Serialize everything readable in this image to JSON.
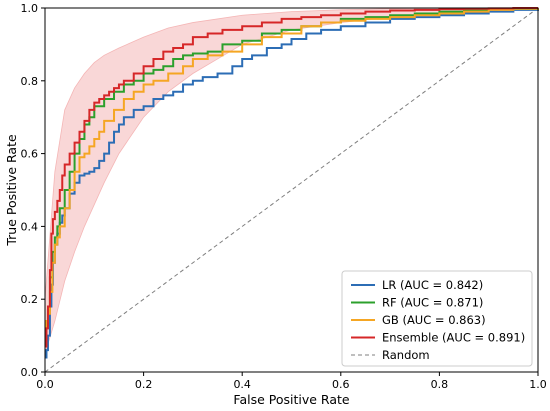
{
  "chart_data": {
    "type": "line",
    "title": "",
    "xlabel": "False Positive Rate",
    "ylabel": "True Positive Rate",
    "xlim": [
      0.0,
      1.0
    ],
    "ylim": [
      0.0,
      1.0
    ],
    "xticks": [
      "0.0",
      "0.2",
      "0.4",
      "0.6",
      "0.8",
      "1.0"
    ],
    "yticks": [
      "0.0",
      "0.2",
      "0.4",
      "0.6",
      "0.8",
      "1.0"
    ],
    "grid": false,
    "legend_position": "lower-right",
    "series": [
      {
        "name": "LR (AUC = 0.842)",
        "color": "#2c6db5",
        "style": "step",
        "x": [
          0.0,
          0.003,
          0.006,
          0.01,
          0.013,
          0.016,
          0.02,
          0.025,
          0.03,
          0.035,
          0.04,
          0.05,
          0.06,
          0.07,
          0.08,
          0.09,
          0.1,
          0.11,
          0.12,
          0.13,
          0.14,
          0.15,
          0.16,
          0.18,
          0.2,
          0.22,
          0.24,
          0.26,
          0.28,
          0.3,
          0.32,
          0.35,
          0.38,
          0.4,
          0.42,
          0.45,
          0.48,
          0.5,
          0.53,
          0.56,
          0.6,
          0.65,
          0.7,
          0.75,
          0.8,
          0.85,
          0.9,
          0.95,
          1.0
        ],
        "y": [
          0.04,
          0.06,
          0.1,
          0.18,
          0.24,
          0.3,
          0.35,
          0.38,
          0.41,
          0.43,
          0.45,
          0.49,
          0.52,
          0.54,
          0.545,
          0.55,
          0.56,
          0.58,
          0.6,
          0.63,
          0.66,
          0.68,
          0.7,
          0.72,
          0.73,
          0.75,
          0.76,
          0.77,
          0.79,
          0.8,
          0.81,
          0.82,
          0.84,
          0.86,
          0.87,
          0.89,
          0.9,
          0.915,
          0.93,
          0.94,
          0.95,
          0.96,
          0.97,
          0.975,
          0.98,
          0.985,
          0.99,
          0.995,
          1.0
        ]
      },
      {
        "name": "RF (AUC = 0.871)",
        "color": "#2ca02c",
        "style": "step",
        "x": [
          0.0,
          0.003,
          0.006,
          0.01,
          0.015,
          0.02,
          0.025,
          0.03,
          0.04,
          0.05,
          0.06,
          0.07,
          0.08,
          0.09,
          0.1,
          0.12,
          0.14,
          0.16,
          0.18,
          0.2,
          0.22,
          0.24,
          0.26,
          0.28,
          0.3,
          0.33,
          0.36,
          0.4,
          0.44,
          0.48,
          0.52,
          0.56,
          0.6,
          0.65,
          0.7,
          0.75,
          0.8,
          0.85,
          0.9,
          0.95,
          1.0
        ],
        "y": [
          0.1,
          0.13,
          0.17,
          0.26,
          0.33,
          0.37,
          0.4,
          0.45,
          0.5,
          0.55,
          0.6,
          0.64,
          0.68,
          0.7,
          0.73,
          0.75,
          0.77,
          0.79,
          0.8,
          0.82,
          0.83,
          0.84,
          0.86,
          0.87,
          0.875,
          0.88,
          0.9,
          0.91,
          0.93,
          0.94,
          0.95,
          0.96,
          0.97,
          0.975,
          0.98,
          0.985,
          0.99,
          0.993,
          0.996,
          0.998,
          1.0
        ]
      },
      {
        "name": "GB (AUC = 0.863)",
        "color": "#f5a623",
        "style": "step",
        "x": [
          0.0,
          0.003,
          0.006,
          0.01,
          0.015,
          0.02,
          0.025,
          0.03,
          0.04,
          0.05,
          0.06,
          0.07,
          0.08,
          0.09,
          0.1,
          0.11,
          0.12,
          0.14,
          0.16,
          0.18,
          0.2,
          0.22,
          0.25,
          0.28,
          0.3,
          0.33,
          0.36,
          0.4,
          0.44,
          0.48,
          0.52,
          0.56,
          0.6,
          0.65,
          0.7,
          0.75,
          0.8,
          0.85,
          0.9,
          0.95,
          1.0
        ],
        "y": [
          0.12,
          0.14,
          0.16,
          0.22,
          0.3,
          0.35,
          0.37,
          0.4,
          0.45,
          0.5,
          0.55,
          0.59,
          0.6,
          0.62,
          0.64,
          0.66,
          0.69,
          0.72,
          0.75,
          0.77,
          0.79,
          0.8,
          0.82,
          0.84,
          0.86,
          0.87,
          0.88,
          0.9,
          0.92,
          0.93,
          0.95,
          0.96,
          0.965,
          0.97,
          0.975,
          0.98,
          0.985,
          0.99,
          0.995,
          0.998,
          1.0
        ]
      },
      {
        "name": "Ensemble (AUC = 0.891)",
        "color": "#d62728",
        "style": "step",
        "x": [
          0.0,
          0.003,
          0.006,
          0.01,
          0.013,
          0.016,
          0.02,
          0.025,
          0.03,
          0.035,
          0.04,
          0.05,
          0.06,
          0.07,
          0.08,
          0.09,
          0.1,
          0.11,
          0.12,
          0.13,
          0.14,
          0.15,
          0.16,
          0.18,
          0.2,
          0.22,
          0.24,
          0.26,
          0.28,
          0.3,
          0.33,
          0.36,
          0.4,
          0.44,
          0.48,
          0.52,
          0.56,
          0.6,
          0.65,
          0.7,
          0.75,
          0.8,
          0.85,
          0.9,
          0.95,
          1.0
        ],
        "y": [
          0.07,
          0.12,
          0.18,
          0.28,
          0.38,
          0.42,
          0.44,
          0.47,
          0.5,
          0.54,
          0.57,
          0.6,
          0.63,
          0.66,
          0.69,
          0.72,
          0.74,
          0.75,
          0.76,
          0.77,
          0.78,
          0.79,
          0.8,
          0.82,
          0.84,
          0.86,
          0.88,
          0.89,
          0.9,
          0.92,
          0.93,
          0.94,
          0.95,
          0.96,
          0.97,
          0.975,
          0.98,
          0.985,
          0.99,
          0.993,
          0.995,
          0.997,
          0.998,
          0.999,
          1.0,
          1.0
        ]
      },
      {
        "name": "Random",
        "color": "#7f7f7f",
        "style": "dashed",
        "x": [
          0.0,
          1.0
        ],
        "y": [
          0.0,
          1.0
        ]
      }
    ],
    "band": {
      "color": "#f4b6b6",
      "x": [
        0.0,
        0.02,
        0.04,
        0.06,
        0.08,
        0.1,
        0.12,
        0.15,
        0.2,
        0.25,
        0.3,
        0.35,
        0.4,
        0.5,
        0.6,
        0.7,
        0.8,
        0.9,
        1.0
      ],
      "lower": [
        0.05,
        0.14,
        0.25,
        0.33,
        0.4,
        0.46,
        0.52,
        0.6,
        0.7,
        0.77,
        0.82,
        0.86,
        0.9,
        0.94,
        0.96,
        0.975,
        0.985,
        0.993,
        1.0
      ],
      "upper": [
        0.2,
        0.55,
        0.72,
        0.78,
        0.82,
        0.85,
        0.87,
        0.89,
        0.92,
        0.945,
        0.96,
        0.97,
        0.98,
        0.99,
        0.995,
        0.998,
        1.0,
        1.0,
        1.0
      ]
    }
  }
}
